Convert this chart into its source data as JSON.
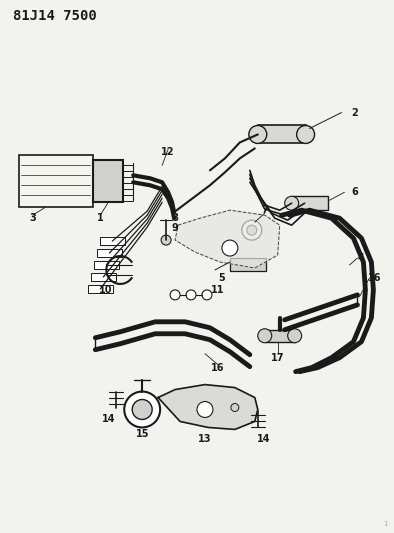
{
  "title": "81J14 7500",
  "bg_color": "#f2f2ee",
  "line_color": "#1a1a1a",
  "title_fontsize": 10,
  "label_fontsize": 7
}
